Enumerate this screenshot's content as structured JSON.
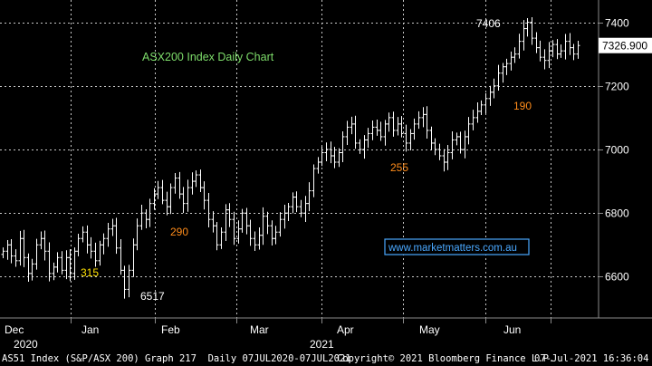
{
  "chart_data": {
    "type": "ohlc",
    "title": "ASX200 Index Daily Chart",
    "ylim": [
      6470,
      7470
    ],
    "yticks": [
      6600,
      6800,
      7000,
      7200,
      7400
    ],
    "last_price_label": "7326.900",
    "last_price": 7326.9,
    "x_month_labels": [
      "Dec",
      "Jan",
      "Feb",
      "Mar",
      "Apr",
      "May",
      "Jun"
    ],
    "x_year_labels": [
      "2020",
      "2021"
    ],
    "watermark": "www.marketmatters.com.au",
    "annotations": [
      {
        "text": "7406",
        "color": "#ffffff"
      },
      {
        "text": "190",
        "color": "#ff8c1a"
      },
      {
        "text": "255",
        "color": "#ff8c1a"
      },
      {
        "text": "290",
        "color": "#ff8c1a"
      },
      {
        "text": "315",
        "color": "#ffe000"
      },
      {
        "text": "6517",
        "color": "#ffffff"
      }
    ],
    "series": [
      {
        "values": [
          6680,
          6700,
          6665,
          6650,
          6720,
          6660,
          6610,
          6640,
          6700,
          6720,
          6680,
          6610,
          6630,
          6660,
          6620,
          6660,
          6610,
          6680,
          6720,
          6740,
          6700,
          6680,
          6650,
          6700,
          6720,
          6750,
          6760,
          6690,
          6620,
          6560,
          6620,
          6700,
          6760,
          6800,
          6780,
          6830,
          6860,
          6880,
          6840,
          6820,
          6880,
          6910,
          6860,
          6830,
          6880,
          6900,
          6920,
          6880,
          6840,
          6780,
          6760,
          6700,
          6740,
          6810,
          6780,
          6720,
          6750,
          6800,
          6760,
          6720,
          6700,
          6730,
          6790,
          6760,
          6720,
          6740,
          6780,
          6800,
          6820,
          6850,
          6820,
          6800,
          6830,
          6870,
          6940,
          6960,
          6990,
          7000,
          6980,
          6960,
          6990,
          7040,
          7070,
          7080,
          7020,
          7000,
          7030,
          7050,
          7070,
          7060,
          7040,
          7080,
          7100,
          7060,
          7080,
          7050,
          7020,
          7050,
          7080,
          7100,
          7110,
          7060,
          7020,
          7000,
          6980,
          6960,
          6990,
          7030,
          7040,
          7000,
          7040,
          7080,
          7100,
          7120,
          7140,
          7160,
          7180,
          7200,
          7240,
          7260,
          7270,
          7290,
          7300,
          7340,
          7380,
          7400,
          7350,
          7320,
          7290,
          7280,
          7310,
          7330,
          7300,
          7310,
          7340,
          7320,
          7300,
          7326.9
        ]
      }
    ]
  },
  "footer": {
    "left": "AS51 Index (S&P/ASX 200) Graph 217  Daily 07JUL2020-07JUL2021",
    "mid": "Copyright© 2021 Bloomberg Finance L.P.",
    "right": "07-Jul-2021 16:36:04"
  }
}
